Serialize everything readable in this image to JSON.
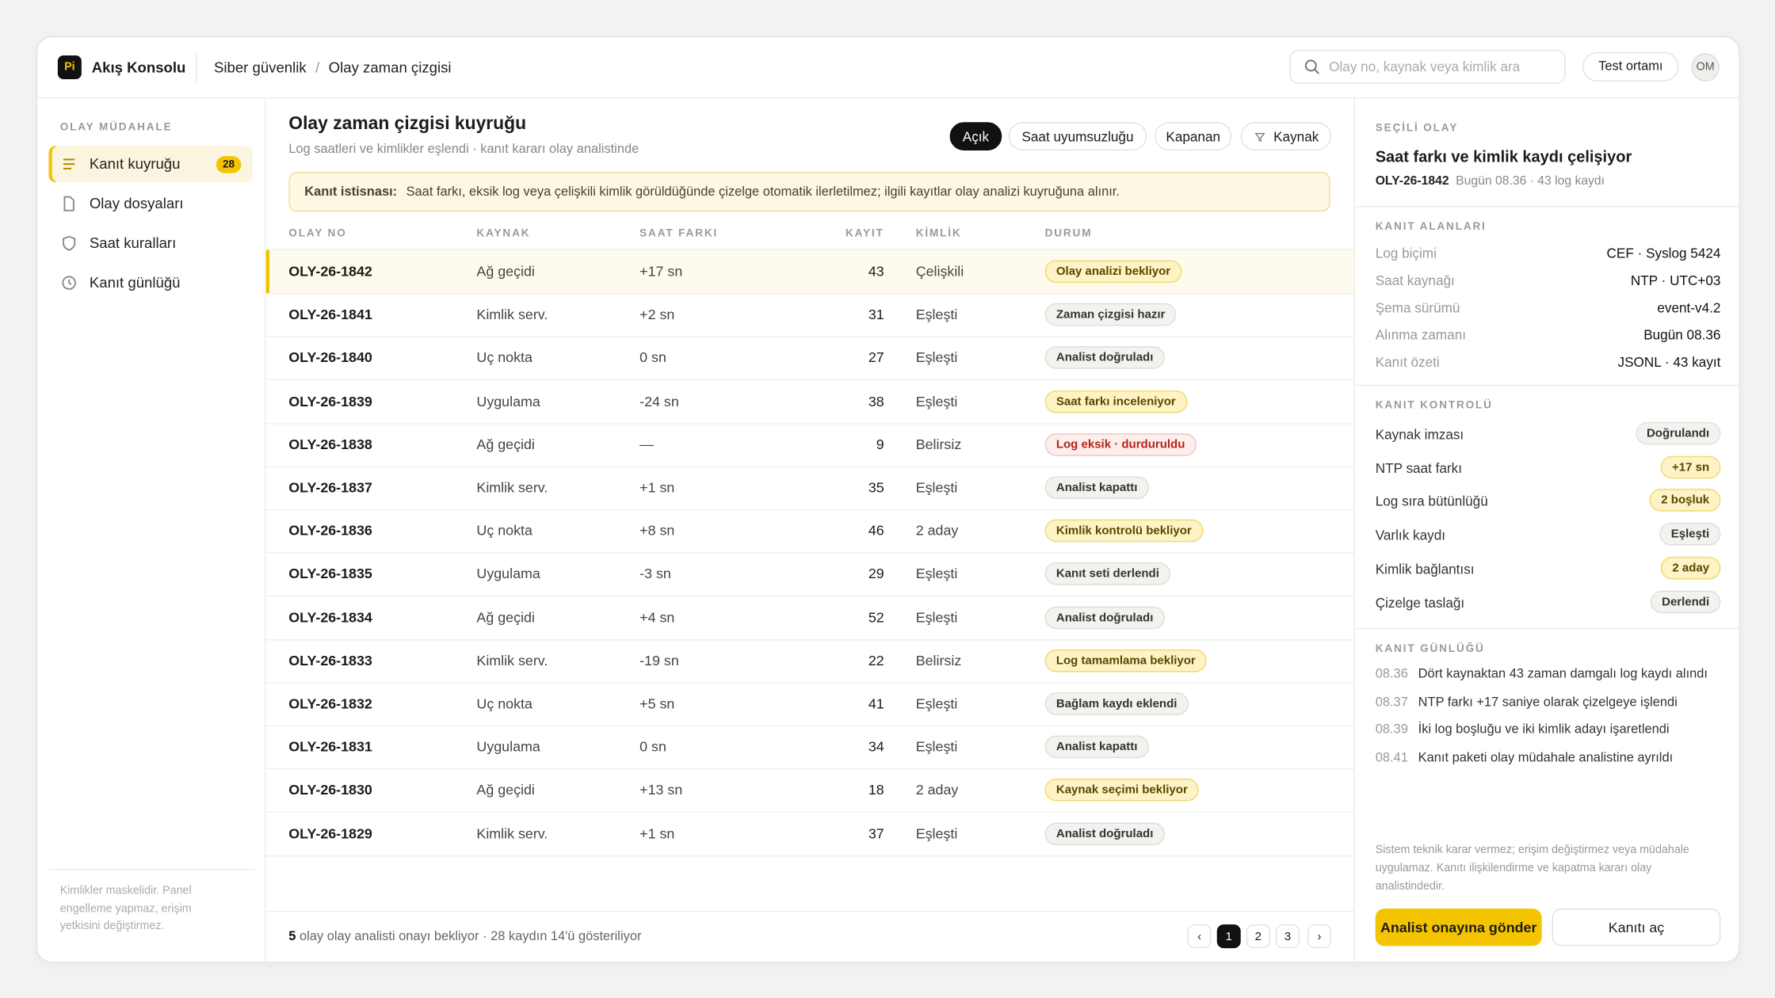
{
  "app": {
    "logo": "Pi",
    "name": "Akış Konsolu"
  },
  "breadcrumb": {
    "items": [
      "Siber güvenlik",
      "Olay zaman çizgisi"
    ],
    "separator": "/"
  },
  "search": {
    "placeholder": "Olay no, kaynak veya kimlik ara"
  },
  "environment": "Test ortamı",
  "avatar": "OM",
  "sidebar": {
    "section": "OLAY MÜDAHALE",
    "items": [
      {
        "label": "Kanıt kuyruğu",
        "badge": 28,
        "active": true
      },
      {
        "label": "Olay dosyaları"
      },
      {
        "label": "Saat kuralları"
      },
      {
        "label": "Kanıt günlüğü"
      }
    ],
    "note": "Kimlikler maskelidir. Panel engelleme yapmaz, erişim yetkisini değiştirmez."
  },
  "main": {
    "title": "Olay zaman çizgisi kuyruğu",
    "subtitle": "Log saatleri ve kimlikler eşlendi · kanıt kararı olay analistinde",
    "filters": [
      {
        "label": "Açık",
        "active": true
      },
      {
        "label": "Saat uyumsuzluğu"
      },
      {
        "label": "Kapanan"
      },
      {
        "label": "Kaynak",
        "icon": "filter"
      }
    ],
    "notice": {
      "label": "Kanıt istisnası:",
      "text": "Saat farkı, eksik log veya çelişkili kimlik görüldüğünde çizelge otomatik ilerletilmez; ilgili kayıtlar olay analizi kuyruğuna alınır."
    },
    "table": {
      "columns": [
        "OLAY NO",
        "KAYNAK",
        "SAAT FARKI",
        "KAYIT",
        "KİMLİK",
        "DURUM"
      ],
      "rows": [
        {
          "id": "OLY-26-1842",
          "source": "Ağ geçidi",
          "skew": "+17 sn",
          "count": 43,
          "identity": "Çelişkili",
          "status": "Olay analizi bekliyor",
          "tone": "warn",
          "selected": true
        },
        {
          "id": "OLY-26-1841",
          "source": "Kimlik serv.",
          "skew": "+2 sn",
          "count": 31,
          "identity": "Eşleşti",
          "status": "Zaman çizgisi hazır",
          "tone": "neutral"
        },
        {
          "id": "OLY-26-1840",
          "source": "Uç nokta",
          "skew": "0 sn",
          "count": 27,
          "identity": "Eşleşti",
          "status": "Analist doğruladı",
          "tone": "neutral"
        },
        {
          "id": "OLY-26-1839",
          "source": "Uygulama",
          "skew": "-24 sn",
          "count": 38,
          "identity": "Eşleşti",
          "status": "Saat farkı inceleniyor",
          "tone": "warn"
        },
        {
          "id": "OLY-26-1838",
          "source": "Ağ geçidi",
          "skew": "—",
          "count": 9,
          "identity": "Belirsiz",
          "status": "Log eksik · durduruldu",
          "tone": "danger"
        },
        {
          "id": "OLY-26-1837",
          "source": "Kimlik serv.",
          "skew": "+1 sn",
          "count": 35,
          "identity": "Eşleşti",
          "status": "Analist kapattı",
          "tone": "neutral"
        },
        {
          "id": "OLY-26-1836",
          "source": "Uç nokta",
          "skew": "+8 sn",
          "count": 46,
          "identity": "2 aday",
          "status": "Kimlik kontrolü bekliyor",
          "tone": "warn"
        },
        {
          "id": "OLY-26-1835",
          "source": "Uygulama",
          "skew": "-3 sn",
          "count": 29,
          "identity": "Eşleşti",
          "status": "Kanıt seti derlendi",
          "tone": "neutral"
        },
        {
          "id": "OLY-26-1834",
          "source": "Ağ geçidi",
          "skew": "+4 sn",
          "count": 52,
          "identity": "Eşleşti",
          "status": "Analist doğruladı",
          "tone": "neutral"
        },
        {
          "id": "OLY-26-1833",
          "source": "Kimlik serv.",
          "skew": "-19 sn",
          "count": 22,
          "identity": "Belirsiz",
          "status": "Log tamamlama bekliyor",
          "tone": "warn"
        },
        {
          "id": "OLY-26-1832",
          "source": "Uç nokta",
          "skew": "+5 sn",
          "count": 41,
          "identity": "Eşleşti",
          "status": "Bağlam kaydı eklendi",
          "tone": "neutral"
        },
        {
          "id": "OLY-26-1831",
          "source": "Uygulama",
          "skew": "0 sn",
          "count": 34,
          "identity": "Eşleşti",
          "status": "Analist kapattı",
          "tone": "neutral"
        },
        {
          "id": "OLY-26-1830",
          "source": "Ağ geçidi",
          "skew": "+13 sn",
          "count": 18,
          "identity": "2 aday",
          "status": "Kaynak seçimi bekliyor",
          "tone": "warn"
        },
        {
          "id": "OLY-26-1829",
          "source": "Kimlik serv.",
          "skew": "+1 sn",
          "count": 37,
          "identity": "Eşleşti",
          "status": "Analist doğruladı",
          "tone": "neutral"
        }
      ]
    },
    "footer": {
      "count": "5",
      "text": "olay olay analisti onayı bekliyor · 28 kaydın 14'ü gösteriliyor"
    },
    "pagination": {
      "prev": "‹",
      "pages": [
        1,
        2,
        3
      ],
      "current": 1,
      "next": "›"
    }
  },
  "detail": {
    "section": "SEÇİLİ OLAY",
    "title": "Saat farkı ve kimlik kaydı çelişiyor",
    "id": "OLY-26-1842",
    "meta": "Bugün 08.36 · 43 log kaydı",
    "fields": {
      "title": "KANIT ALANLARI",
      "rows": [
        [
          "Log biçimi",
          "CEF · Syslog 5424"
        ],
        [
          "Saat kaynağı",
          "NTP · UTC+03"
        ],
        [
          "Şema sürümü",
          "event-v4.2"
        ],
        [
          "Alınma zamanı",
          "Bugün 08.36"
        ],
        [
          "Kanıt özeti",
          "JSONL · 43 kayıt"
        ]
      ]
    },
    "control": {
      "title": "KANIT KONTROLÜ",
      "rows": [
        {
          "label": "Kaynak imzası",
          "value": "Doğrulandı",
          "tone": "neutral"
        },
        {
          "label": "NTP saat farkı",
          "value": "+17 sn",
          "tone": "warn"
        },
        {
          "label": "Log sıra bütünlüğü",
          "value": "2 boşluk",
          "tone": "warn"
        },
        {
          "label": "Varlık kaydı",
          "value": "Eşleşti",
          "tone": "neutral"
        },
        {
          "label": "Kimlik bağlantısı",
          "value": "2 aday",
          "tone": "warn"
        },
        {
          "label": "Çizelge taslağı",
          "value": "Derlendi",
          "tone": "neutral"
        }
      ]
    },
    "log": {
      "title": "KANIT GÜNLÜĞÜ",
      "entries": [
        {
          "time": "08.36",
          "text": "Dört kaynaktan 43 zaman damgalı log kaydı alındı"
        },
        {
          "time": "08.37",
          "text": "NTP farkı +17 saniye olarak çizelgeye işlendi"
        },
        {
          "time": "08.39",
          "text": "İki log boşluğu ve iki kimlik adayı işaretlendi"
        },
        {
          "time": "08.41",
          "text": "Kanıt paketi olay müdahale analistine ayrıldı"
        }
      ]
    },
    "disclaimer": "Sistem teknik karar vermez; erişim değiştirmez veya müdahale uygulamaz. Kanıtı ilişkilendirme ve kapatma kararı olay analistindedir.",
    "actions": {
      "primary": "Analist onayına gönder",
      "secondary": "Kanıtı aç"
    }
  }
}
